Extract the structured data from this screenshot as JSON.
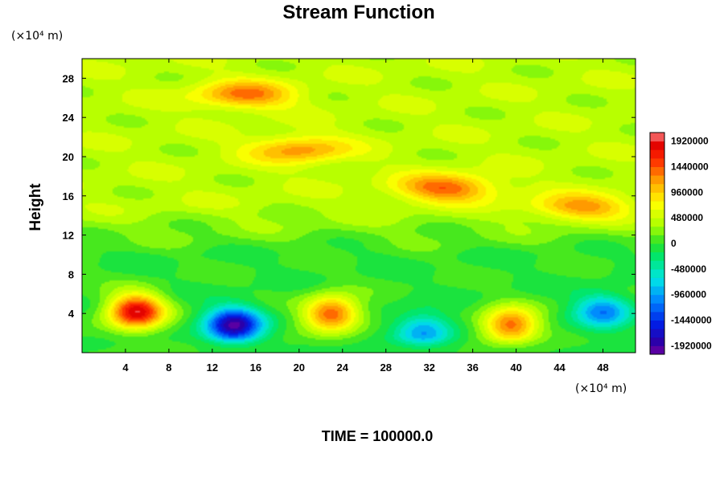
{
  "chart_data": {
    "type": "heatmap",
    "title": "Stream Function",
    "ylabel": "Height",
    "y_unit": "(×10⁴ m)",
    "x_unit": "(×10⁴ m)",
    "xlim": [
      0,
      51
    ],
    "ylim": [
      0,
      30
    ],
    "x_ticks": [
      "4",
      "8",
      "12",
      "16",
      "20",
      "24",
      "28",
      "32",
      "36",
      "40",
      "44",
      "48"
    ],
    "y_ticks": [
      "4",
      "8",
      "12",
      "16",
      "20",
      "24",
      "28"
    ],
    "colorbar": {
      "min": -2080000,
      "max": 2080000,
      "ticks": [
        "1920000",
        "1440000",
        "960000",
        "480000",
        "0",
        "-480000",
        "-960000",
        "-1440000",
        "-1920000"
      ]
    },
    "footer": "TIME = 100000.0",
    "features": [
      {
        "kind": "high",
        "x": 5,
        "y": 4.2,
        "value": 1900000
      },
      {
        "kind": "low",
        "x": 14,
        "y": 2.8,
        "value": -1920000
      },
      {
        "kind": "high",
        "x": 23,
        "y": 4,
        "value": 1450000
      },
      {
        "kind": "low",
        "x": 31.5,
        "y": 2.2,
        "value": -950000
      },
      {
        "kind": "high",
        "x": 39.5,
        "y": 2.8,
        "value": 1400000
      },
      {
        "kind": "low",
        "x": 48,
        "y": 4.2,
        "value": -1050000
      },
      {
        "kind": "high",
        "x": 33.5,
        "y": 16.8,
        "value": 1000000
      },
      {
        "kind": "high",
        "x": 46,
        "y": 14.8,
        "value": 800000
      },
      {
        "kind": "high",
        "x": 15,
        "y": 26.3,
        "value": 900000
      },
      {
        "kind": "high",
        "x": 20,
        "y": 20.7,
        "value": 800000
      }
    ]
  }
}
